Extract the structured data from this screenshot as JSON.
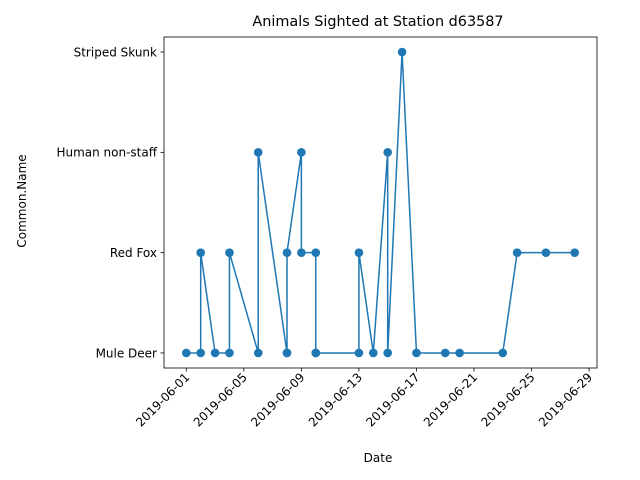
{
  "chart_data": {
    "type": "line",
    "title": "Animals Sighted at Station d63587",
    "xlabel": "Date",
    "ylabel": "Common.Name",
    "categories": [
      "Mule Deer",
      "Red Fox",
      "Human non-staff",
      "Striped Skunk"
    ],
    "x_ticks": [
      "2019-06-01",
      "2019-06-05",
      "2019-06-09",
      "2019-06-13",
      "2019-06-17",
      "2019-06-21",
      "2019-06-25",
      "2019-06-29"
    ],
    "xlim": [
      "2019-05-30",
      "2019-06-30"
    ],
    "grid": false,
    "marker": "circle",
    "color": "#1f77b4",
    "series": [
      {
        "points": [
          {
            "x": "2019-06-01",
            "y": "Mule Deer"
          },
          {
            "x": "2019-06-02",
            "y": "Mule Deer"
          },
          {
            "x": "2019-06-02",
            "y": "Red Fox"
          },
          {
            "x": "2019-06-03",
            "y": "Mule Deer"
          },
          {
            "x": "2019-06-04",
            "y": "Mule Deer"
          },
          {
            "x": "2019-06-04",
            "y": "Red Fox"
          },
          {
            "x": "2019-06-06",
            "y": "Mule Deer"
          },
          {
            "x": "2019-06-06",
            "y": "Human non-staff"
          },
          {
            "x": "2019-06-08",
            "y": "Mule Deer"
          },
          {
            "x": "2019-06-08",
            "y": "Mule Deer"
          },
          {
            "x": "2019-06-08",
            "y": "Red Fox"
          },
          {
            "x": "2019-06-09",
            "y": "Human non-staff"
          },
          {
            "x": "2019-06-09",
            "y": "Red Fox"
          },
          {
            "x": "2019-06-10",
            "y": "Red Fox"
          },
          {
            "x": "2019-06-10",
            "y": "Mule Deer"
          },
          {
            "x": "2019-06-10",
            "y": "Mule Deer"
          },
          {
            "x": "2019-06-13",
            "y": "Mule Deer"
          },
          {
            "x": "2019-06-13",
            "y": "Red Fox"
          },
          {
            "x": "2019-06-14",
            "y": "Mule Deer"
          },
          {
            "x": "2019-06-15",
            "y": "Human non-staff"
          },
          {
            "x": "2019-06-15",
            "y": "Mule Deer"
          },
          {
            "x": "2019-06-16",
            "y": "Striped Skunk"
          },
          {
            "x": "2019-06-17",
            "y": "Mule Deer"
          },
          {
            "x": "2019-06-19",
            "y": "Mule Deer"
          },
          {
            "x": "2019-06-20",
            "y": "Mule Deer"
          },
          {
            "x": "2019-06-23",
            "y": "Mule Deer"
          },
          {
            "x": "2019-06-24",
            "y": "Red Fox"
          },
          {
            "x": "2019-06-26",
            "y": "Red Fox"
          },
          {
            "x": "2019-06-28",
            "y": "Red Fox"
          }
        ]
      }
    ]
  }
}
